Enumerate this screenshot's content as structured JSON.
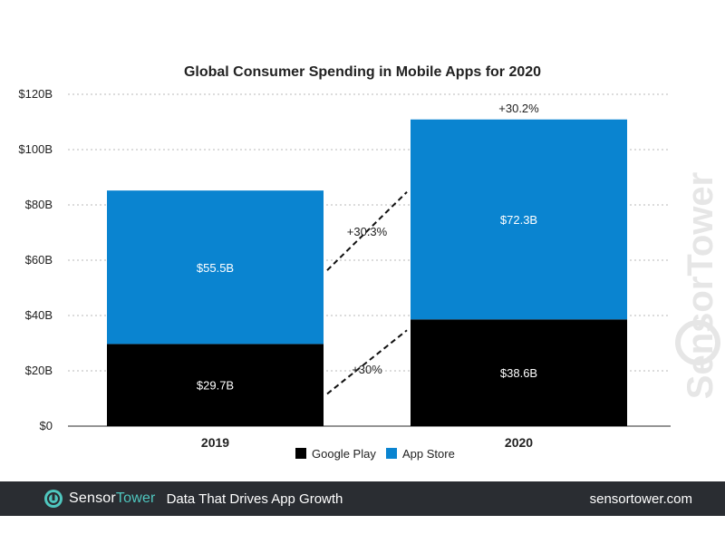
{
  "chart_data": {
    "type": "bar",
    "stacked": true,
    "title": "Global Consumer Spending in Mobile Apps for 2020",
    "categories": [
      "2019",
      "2020"
    ],
    "series": [
      {
        "name": "Google Play",
        "values": [
          29.7,
          38.6
        ],
        "labels": [
          "$29.7B",
          "$38.6B"
        ],
        "color": "#000000"
      },
      {
        "name": "App Store",
        "values": [
          55.5,
          72.3
        ],
        "labels": [
          "$55.5B",
          "$72.3B"
        ],
        "color": "#0a84d0"
      }
    ],
    "ylim": [
      0,
      120
    ],
    "yticks": [
      {
        "value": 0,
        "label": "$0"
      },
      {
        "value": 20,
        "label": "$20B"
      },
      {
        "value": 40,
        "label": "$40B"
      },
      {
        "value": 60,
        "label": "$60B"
      },
      {
        "value": 80,
        "label": "$80B"
      },
      {
        "value": 100,
        "label": "$100B"
      },
      {
        "value": 120,
        "label": "$120B"
      }
    ],
    "grid": true,
    "legend_position": "bottom",
    "annotations": {
      "app_store_growth": "+30.3%",
      "google_play_growth": "+30%",
      "total_growth": "+30.2%"
    }
  },
  "watermark": "SensorTower",
  "footer": {
    "brand_part1": "Sensor",
    "brand_part2": "Tower",
    "tagline": "Data That Drives App Growth",
    "url": "sensortower.com",
    "accent_color": "#4fc7bf"
  }
}
